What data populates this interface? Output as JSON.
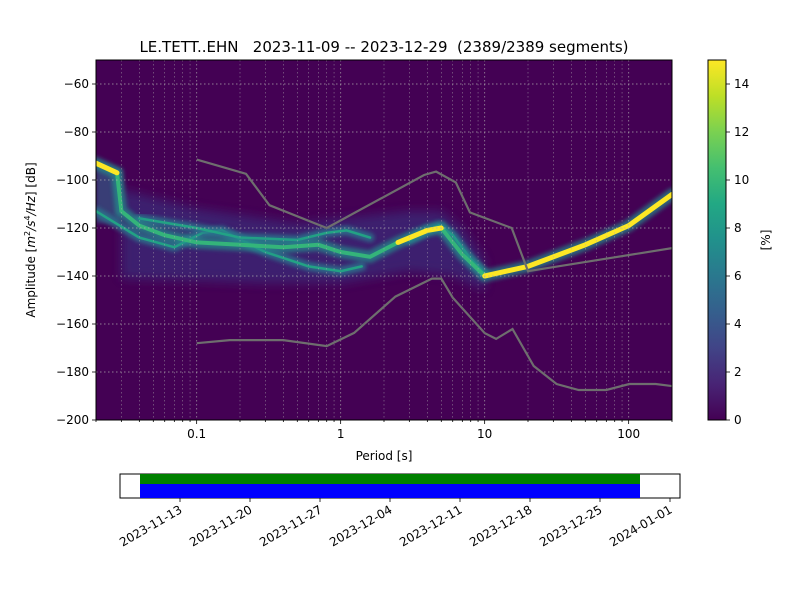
{
  "chart_data": {
    "type": "heatmap",
    "title": "LE.TETT..EHN   2023-11-09 -- 2023-12-29  (2389/2389 segments)",
    "xlabel": "Period [s]",
    "ylabel": "Amplitude [$m^2/s^4/Hz$] [dB]",
    "ylabel_parts": {
      "pre": "Amplitude [",
      "m": "m",
      "sup2": "2",
      "slash1": "/s",
      "sup4": "4",
      "slash2": "/Hz",
      "post": "] [dB]"
    },
    "x_scale": "log",
    "xlim": [
      0.02,
      200
    ],
    "ylim": [
      -200,
      -50
    ],
    "x_ticks": [
      {
        "value": 0.1,
        "label": "0.1"
      },
      {
        "value": 1,
        "label": "1"
      },
      {
        "value": 10,
        "label": "10"
      },
      {
        "value": 100,
        "label": "100"
      }
    ],
    "y_ticks": [
      {
        "value": -60,
        "label": "−60"
      },
      {
        "value": -80,
        "label": "−80"
      },
      {
        "value": -100,
        "label": "−100"
      },
      {
        "value": -120,
        "label": "−120"
      },
      {
        "value": -140,
        "label": "−140"
      },
      {
        "value": -160,
        "label": "−160"
      },
      {
        "value": -180,
        "label": "−180"
      },
      {
        "value": -200,
        "label": "−200"
      }
    ],
    "grid": true,
    "colorbar": {
      "label": "[%]",
      "range": [
        0,
        15
      ],
      "colormap": "viridis",
      "ticks": [
        {
          "value": 0,
          "label": "0"
        },
        {
          "value": 2,
          "label": "2"
        },
        {
          "value": 4,
          "label": "4"
        },
        {
          "value": 6,
          "label": "6"
        },
        {
          "value": 8,
          "label": "8"
        },
        {
          "value": 10,
          "label": "10"
        },
        {
          "value": 12,
          "label": "12"
        },
        {
          "value": 14,
          "label": "14"
        }
      ]
    },
    "background_color": "#440154",
    "noise_model_color": "#6e6e6e",
    "high_noise_model": [
      [
        0.1,
        -91.5
      ],
      [
        0.22,
        -97.4
      ],
      [
        0.32,
        -110.5
      ],
      [
        0.8,
        -120
      ],
      [
        3.8,
        -97.9
      ],
      [
        4.6,
        -96.5
      ],
      [
        6.3,
        -101
      ],
      [
        7.9,
        -113.5
      ],
      [
        15.4,
        -120
      ],
      [
        20,
        -138
      ],
      [
        354.8,
        -126
      ]
    ],
    "low_noise_model": [
      [
        0.1,
        -168
      ],
      [
        0.17,
        -166.7
      ],
      [
        0.4,
        -166.7
      ],
      [
        0.8,
        -169.2
      ],
      [
        1.24,
        -163.7
      ],
      [
        2.4,
        -148.6
      ],
      [
        4.3,
        -141.1
      ],
      [
        5,
        -141.1
      ],
      [
        6,
        -149
      ],
      [
        10,
        -163.8
      ],
      [
        12,
        -166.2
      ],
      [
        15.6,
        -162.1
      ],
      [
        21.9,
        -177.5
      ],
      [
        31.6,
        -185
      ],
      [
        45,
        -187.5
      ],
      [
        70,
        -187.5
      ],
      [
        101,
        -185
      ],
      [
        154,
        -185
      ],
      [
        328,
        -187.5
      ]
    ],
    "psd_mode": [
      [
        0.02,
        -93
      ],
      [
        0.028,
        -97
      ],
      [
        0.03,
        -113
      ],
      [
        0.04,
        -119
      ],
      [
        0.06,
        -123
      ],
      [
        0.1,
        -126
      ],
      [
        0.2,
        -127
      ],
      [
        0.4,
        -128
      ],
      [
        0.7,
        -127
      ],
      [
        1,
        -130
      ],
      [
        1.6,
        -132
      ],
      [
        2.5,
        -126
      ],
      [
        4,
        -121
      ],
      [
        5,
        -120
      ],
      [
        7,
        -131
      ],
      [
        10,
        -140
      ],
      [
        20,
        -136
      ],
      [
        50,
        -127
      ],
      [
        100,
        -119
      ],
      [
        200,
        -106
      ]
    ],
    "psd_branches": [
      [
        [
          0.02,
          -113
        ],
        [
          0.04,
          -124
        ],
        [
          0.07,
          -128
        ],
        [
          0.11,
          -122
        ],
        [
          0.15,
          -121
        ],
        [
          0.3,
          -130
        ],
        [
          0.6,
          -136
        ],
        [
          1,
          -138
        ],
        [
          1.4,
          -136
        ]
      ],
      [
        [
          0.04,
          -116
        ],
        [
          0.1,
          -120
        ],
        [
          0.2,
          -124
        ],
        [
          0.5,
          -125
        ],
        [
          0.8,
          -122
        ],
        [
          1.1,
          -121
        ],
        [
          1.6,
          -124
        ]
      ],
      [
        [
          3,
          -125
        ],
        [
          4,
          -121
        ],
        [
          4.8,
          -119
        ],
        [
          6,
          -123
        ],
        [
          8,
          -133
        ],
        [
          10,
          -139
        ]
      ]
    ],
    "time_coverage": {
      "date_ticks": [
        "2023-11-13",
        "2023-11-20",
        "2023-11-27",
        "2023-12-04",
        "2023-12-11",
        "2023-12-18",
        "2023-12-25",
        "2024-01-01"
      ],
      "axis_range": [
        "2023-11-07",
        "2024-01-02"
      ],
      "data_range": [
        "2023-11-09",
        "2023-12-29"
      ],
      "colors": {
        "available": "#0000ff",
        "used": "#008000"
      }
    }
  }
}
